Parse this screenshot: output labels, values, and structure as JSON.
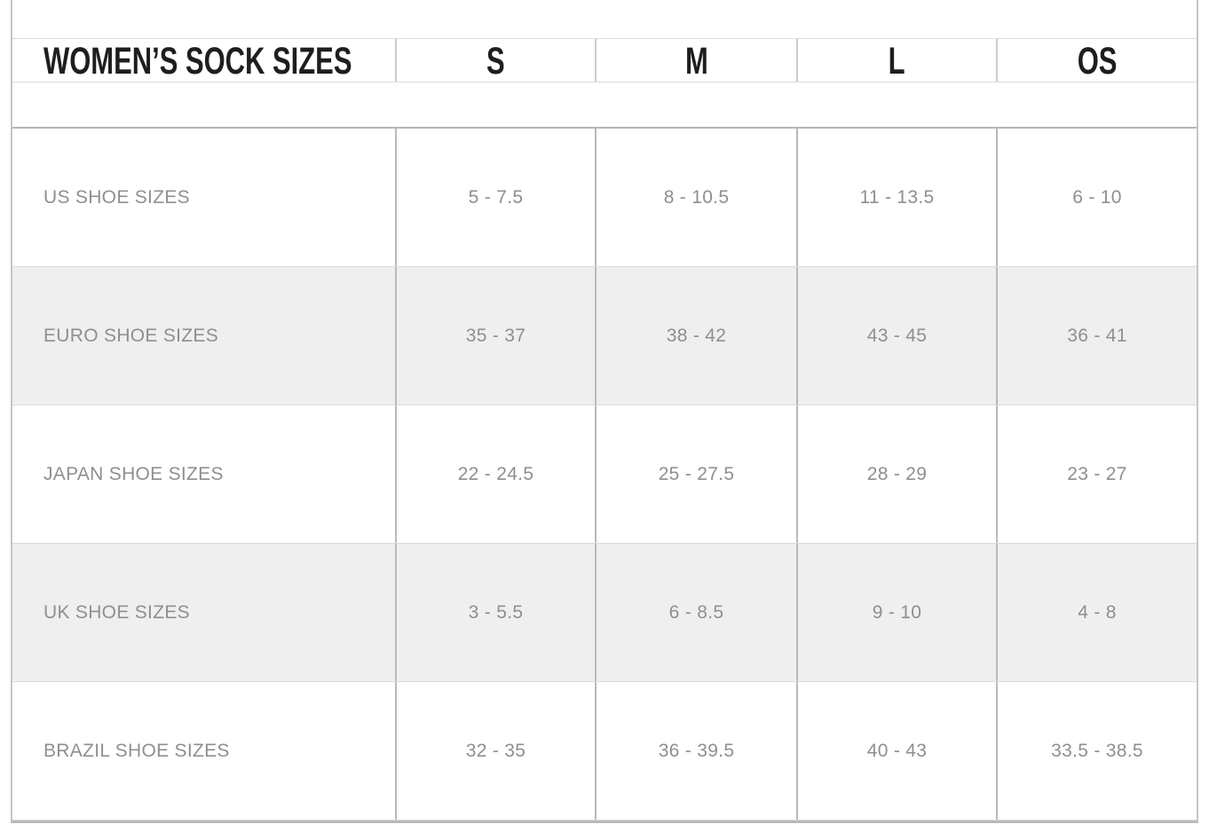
{
  "table": {
    "title": "WOMEN’S SOCK SIZES",
    "columns": [
      "S",
      "M",
      "L",
      "OS"
    ],
    "rows": [
      {
        "label": "US SHOE SIZES",
        "values": [
          "5 - 7.5",
          "8 - 10.5",
          "11 - 13.5",
          "6 - 10"
        ]
      },
      {
        "label": "EURO SHOE SIZES",
        "values": [
          "35 - 37",
          "38 - 42",
          "43 - 45",
          "36 - 41"
        ]
      },
      {
        "label": "JAPAN SHOE SIZES",
        "values": [
          "22 - 24.5",
          "25 - 27.5",
          "28 - 29",
          "23 - 27"
        ]
      },
      {
        "label": "UK SHOE SIZES",
        "values": [
          "3 - 5.5",
          "6 - 8.5",
          "9 - 10",
          "4 - 8"
        ]
      },
      {
        "label": "BRAZIL SHOE SIZES",
        "values": [
          "32 - 35",
          "36 - 39.5",
          "40 - 43",
          "33.5 - 38.5"
        ]
      }
    ],
    "colors": {
      "header_text": "#1e1e1e",
      "body_text": "#8f8f8f",
      "alt_row_bg": "#efefef",
      "cell_border": "#b9b9b9",
      "row_separator": "#dcdcdc"
    }
  }
}
